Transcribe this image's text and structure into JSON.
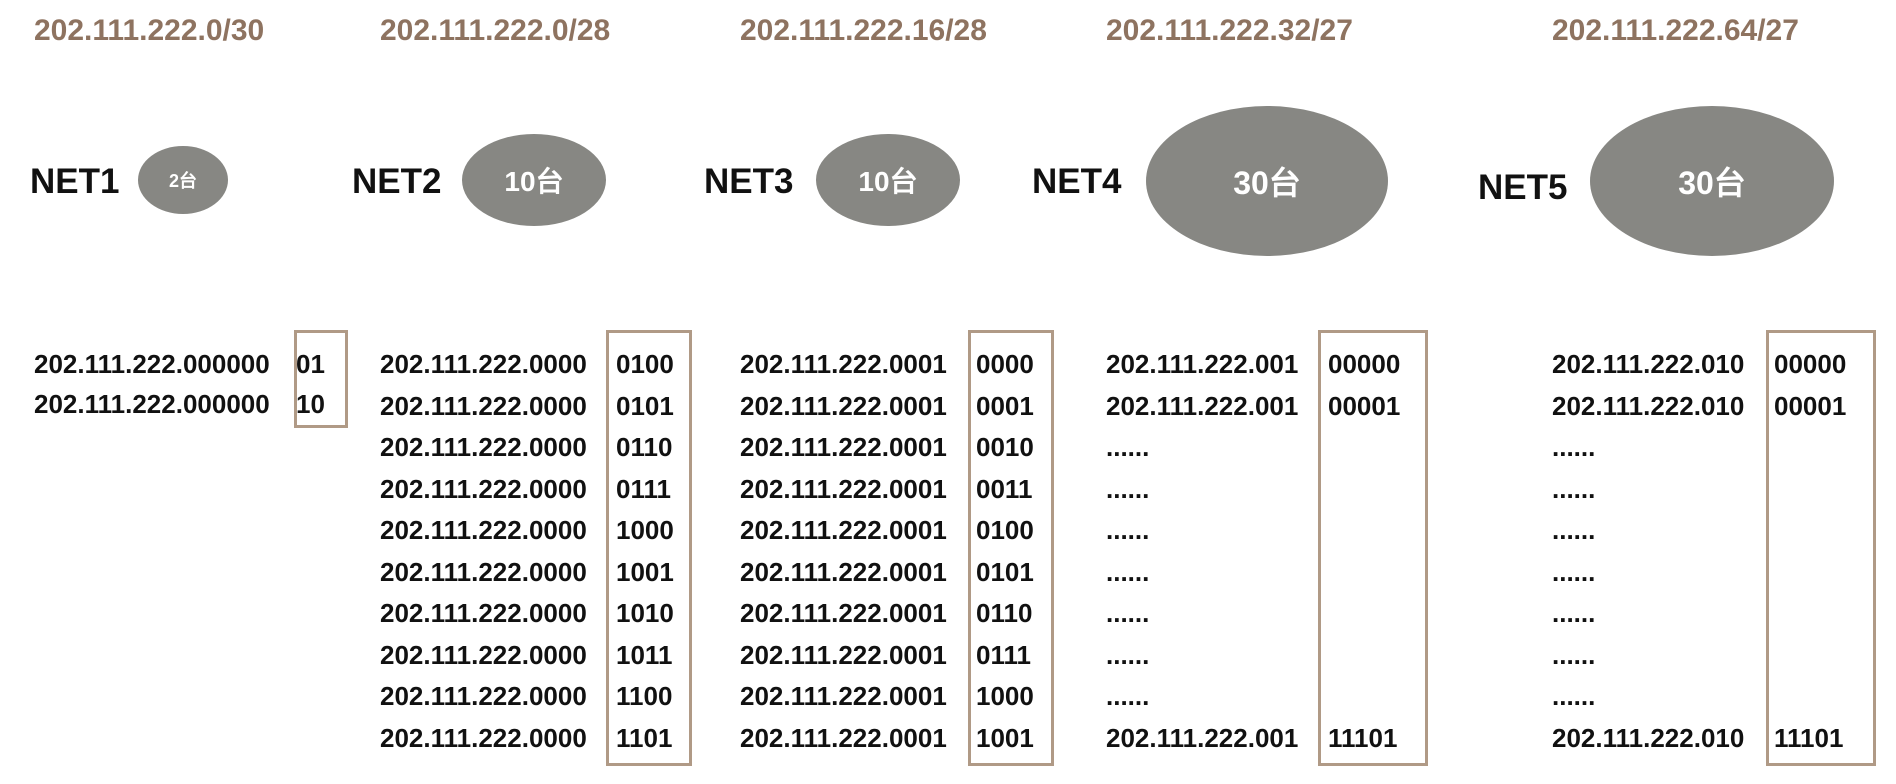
{
  "columns": [
    {
      "cidr": "202.111.222.0/30",
      "net": "NET1",
      "hosts": "2台",
      "rows": [
        {
          "prefix": "202.111.222.000000",
          "host": "01"
        },
        {
          "prefix": "202.111.222.000000",
          "host": "10"
        }
      ]
    },
    {
      "cidr": "202.111.222.0/28",
      "net": "NET2",
      "hosts": "10台",
      "rows": [
        {
          "prefix": "202.111.222.0000",
          "host": "0100"
        },
        {
          "prefix": "202.111.222.0000",
          "host": "0101"
        },
        {
          "prefix": "202.111.222.0000",
          "host": "0110"
        },
        {
          "prefix": "202.111.222.0000",
          "host": "0111"
        },
        {
          "prefix": "202.111.222.0000",
          "host": "1000"
        },
        {
          "prefix": "202.111.222.0000",
          "host": "1001"
        },
        {
          "prefix": "202.111.222.0000",
          "host": "1010"
        },
        {
          "prefix": "202.111.222.0000",
          "host": "1011"
        },
        {
          "prefix": "202.111.222.0000",
          "host": "1100"
        },
        {
          "prefix": "202.111.222.0000",
          "host": "1101"
        }
      ]
    },
    {
      "cidr": "202.111.222.16/28",
      "net": "NET3",
      "hosts": "10台",
      "rows": [
        {
          "prefix": "202.111.222.0001",
          "host": "0000"
        },
        {
          "prefix": "202.111.222.0001",
          "host": "0001"
        },
        {
          "prefix": "202.111.222.0001",
          "host": "0010"
        },
        {
          "prefix": "202.111.222.0001",
          "host": "0011"
        },
        {
          "prefix": "202.111.222.0001",
          "host": "0100"
        },
        {
          "prefix": "202.111.222.0001",
          "host": "0101"
        },
        {
          "prefix": "202.111.222.0001",
          "host": "0110"
        },
        {
          "prefix": "202.111.222.0001",
          "host": "0111"
        },
        {
          "prefix": "202.111.222.0001",
          "host": "1000"
        },
        {
          "prefix": "202.111.222.0001",
          "host": "1001"
        }
      ]
    },
    {
      "cidr": "202.111.222.32/27",
      "net": "NET4",
      "hosts": "30台",
      "rows": [
        {
          "prefix": "202.111.222.001",
          "host": "00000"
        },
        {
          "prefix": "202.111.222.001",
          "host": "00001"
        },
        {
          "prefix": "......",
          "host": ""
        },
        {
          "prefix": "......",
          "host": ""
        },
        {
          "prefix": "......",
          "host": ""
        },
        {
          "prefix": "......",
          "host": ""
        },
        {
          "prefix": "......",
          "host": ""
        },
        {
          "prefix": "......",
          "host": ""
        },
        {
          "prefix": "......",
          "host": ""
        },
        {
          "prefix": "202.111.222.001",
          "host": "11101"
        }
      ]
    },
    {
      "cidr": "202.111.222.64/27",
      "net": "NET5",
      "hosts": "30台",
      "rows": [
        {
          "prefix": "202.111.222.010",
          "host": "00000"
        },
        {
          "prefix": "202.111.222.010",
          "host": "00001"
        },
        {
          "prefix": "......",
          "host": ""
        },
        {
          "prefix": "......",
          "host": ""
        },
        {
          "prefix": "......",
          "host": ""
        },
        {
          "prefix": "......",
          "host": ""
        },
        {
          "prefix": "......",
          "host": ""
        },
        {
          "prefix": "......",
          "host": ""
        },
        {
          "prefix": "......",
          "host": ""
        },
        {
          "prefix": "202.111.222.010",
          "host": "11101"
        }
      ]
    }
  ],
  "colors": {
    "cidr_text": "#8e7360",
    "ellipse_fill": "#878783",
    "box_border": "#b09a86"
  }
}
